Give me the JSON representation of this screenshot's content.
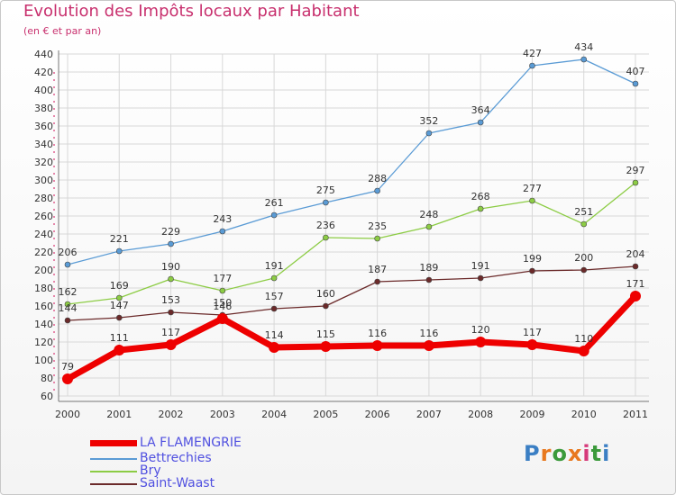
{
  "title": "Evolution des Impôts locaux par Habitant",
  "subtitle": "(en € et par an)",
  "logo": {
    "letters": [
      "P",
      "r",
      "o",
      "x",
      "i",
      "t",
      "i"
    ],
    "colors": [
      "#3b7fc4",
      "#e8781e",
      "#3b9a3b",
      "#e8781e",
      "#d63a7a",
      "#3b9a3b",
      "#3b7fc4"
    ]
  },
  "chart_data": {
    "type": "line",
    "x": [
      "2000",
      "2001",
      "2002",
      "2003",
      "2004",
      "2005",
      "2006",
      "2007",
      "2008",
      "2009",
      "2010",
      "2011"
    ],
    "ylim": [
      60,
      440
    ],
    "yticks": [
      60,
      80,
      100,
      120,
      140,
      160,
      180,
      200,
      220,
      240,
      260,
      280,
      300,
      320,
      340,
      360,
      380,
      400,
      420,
      440
    ],
    "grid": true,
    "legend_position": "bottom-left",
    "series": [
      {
        "name": "LA FLAMENGRIE",
        "color": "#ee0000",
        "values": [
          79,
          111,
          117,
          146,
          114,
          115,
          116,
          116,
          120,
          117,
          110,
          171
        ]
      },
      {
        "name": "Bettrechies",
        "color": "#5a9bd5",
        "values": [
          206,
          221,
          229,
          243,
          261,
          275,
          288,
          352,
          364,
          427,
          434,
          407
        ]
      },
      {
        "name": "Bry",
        "color": "#8ccc44",
        "values": [
          162,
          169,
          190,
          177,
          191,
          236,
          235,
          248,
          268,
          277,
          251,
          297
        ]
      },
      {
        "name": "Saint-Waast",
        "color": "#6b2a2a",
        "values": [
          144,
          147,
          153,
          150,
          157,
          160,
          187,
          189,
          191,
          199,
          200,
          204
        ]
      }
    ]
  }
}
